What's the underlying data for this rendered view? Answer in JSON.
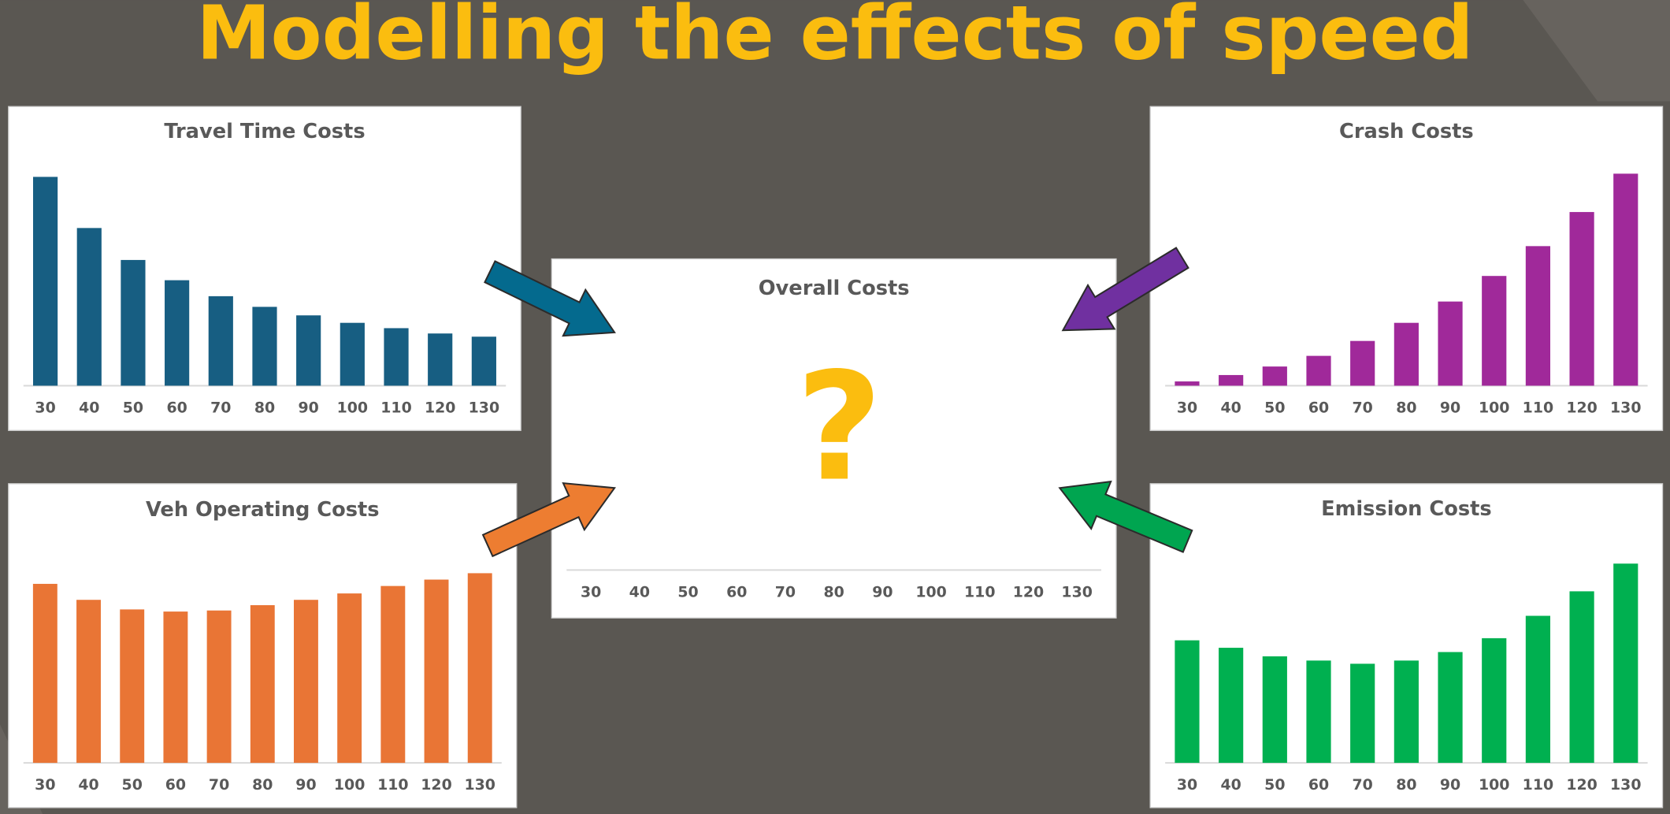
{
  "title": "Modelling the effects of speed",
  "chart_data": [
    {
      "type": "bar",
      "title": "Travel Time Costs",
      "color": "#175e82",
      "categories": [
        "30",
        "40",
        "50",
        "60",
        "70",
        "80",
        "90",
        "100",
        "110",
        "120",
        "130"
      ],
      "values": [
        196,
        148,
        118,
        99,
        84,
        74,
        66,
        59,
        54,
        49,
        46
      ]
    },
    {
      "type": "bar",
      "title": "Crash Costs",
      "color": "#a0299a",
      "categories": [
        "30",
        "40",
        "50",
        "60",
        "70",
        "80",
        "90",
        "100",
        "110",
        "120",
        "130"
      ],
      "values": [
        4,
        10,
        18,
        28,
        42,
        59,
        79,
        103,
        131,
        163,
        199
      ]
    },
    {
      "type": "bar",
      "title": "Veh Operating Costs",
      "color": "#e97535",
      "categories": [
        "30",
        "40",
        "50",
        "60",
        "70",
        "80",
        "90",
        "100",
        "110",
        "120",
        "130"
      ],
      "values": [
        168,
        153,
        144,
        142,
        143,
        148,
        153,
        159,
        166,
        172,
        178
      ]
    },
    {
      "type": "bar",
      "title": "Emission Costs",
      "color": "#00b050",
      "categories": [
        "30",
        "40",
        "50",
        "60",
        "70",
        "80",
        "90",
        "100",
        "110",
        "120",
        "130"
      ],
      "values": [
        115,
        108,
        100,
        96,
        93,
        96,
        104,
        117,
        138,
        161,
        187
      ]
    },
    {
      "type": "bar",
      "title": "Overall Costs",
      "annotation": "?",
      "categories": [
        "30",
        "40",
        "50",
        "60",
        "70",
        "80",
        "90",
        "100",
        "110",
        "120",
        "130"
      ]
    }
  ]
}
